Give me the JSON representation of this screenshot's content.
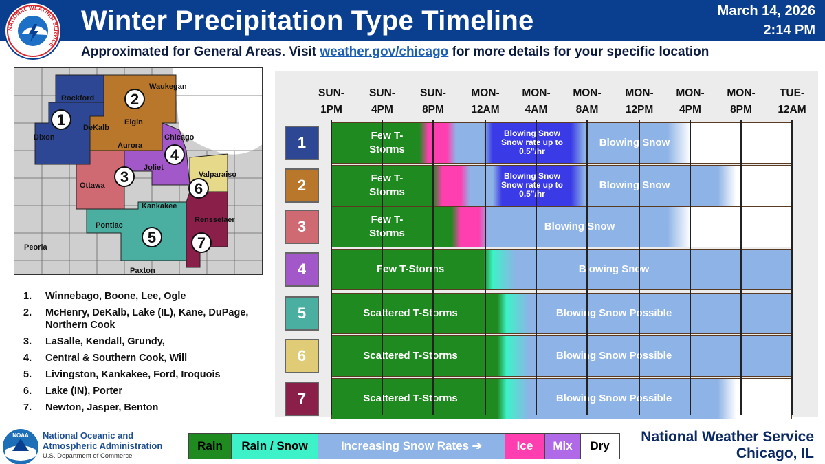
{
  "header": {
    "title": "Winter Precipitation Type Timeline",
    "date": "March 14, 2026",
    "time": "2:14 PM",
    "subtitle_before": "Approximated for General Areas. Visit ",
    "subtitle_link": "weather.gov/chicago",
    "subtitle_after": " for more details for your specific location",
    "logo_text": "NATIONAL WEATHER SERVICE"
  },
  "map": {
    "cities": [
      "Rockford",
      "Waukegan",
      "Dixon",
      "DeKalb",
      "Elgin",
      "Aurora",
      "Chicago",
      "Joliet",
      "Valparaiso",
      "Ottawa",
      "Kankakee",
      "Pontiac",
      "Rensselaer",
      "Peoria",
      "Paxton"
    ],
    "zone_numbers": [
      "1",
      "2",
      "3",
      "4",
      "5",
      "6",
      "7"
    ]
  },
  "areas": [
    {
      "num": "1.",
      "text": "Winnebago, Boone, Lee, Ogle"
    },
    {
      "num": "2.",
      "text": "McHenry, DeKalb, Lake (IL), Kane, DuPage, Northern Cook"
    },
    {
      "num": "3.",
      "text": "LaSalle, Kendall, Grundy,"
    },
    {
      "num": "4.",
      "text": "Central & Southern Cook, Will"
    },
    {
      "num": "5.",
      "text": "Livingston, Kankakee, Ford, Iroquois"
    },
    {
      "num": "6.",
      "text": "Lake (IN), Porter"
    },
    {
      "num": "7.",
      "text": "Newton, Jasper, Benton"
    }
  ],
  "times": [
    {
      "line1": "SUN-",
      "line2": "1PM"
    },
    {
      "line1": "SUN-",
      "line2": "4PM"
    },
    {
      "line1": "SUN-",
      "line2": "8PM"
    },
    {
      "line1": "MON-",
      "line2": "12AM"
    },
    {
      "line1": "MON-",
      "line2": "4AM"
    },
    {
      "line1": "MON-",
      "line2": "8AM"
    },
    {
      "line1": "MON-",
      "line2": "12PM"
    },
    {
      "line1": "MON-",
      "line2": "4PM"
    },
    {
      "line1": "MON-",
      "line2": "8PM"
    },
    {
      "line1": "TUE-",
      "line2": "12AM"
    }
  ],
  "rows": [
    {
      "num": "1",
      "color": "#2e4795",
      "rain_label": "Few T-\nStorms",
      "snow_label": "Blowing Snow",
      "heavy_label": "Blowing Snow\nSnow rate up to\n0.5\"/hr"
    },
    {
      "num": "2",
      "color": "#b8772a",
      "rain_label": "Few T-\nStorms",
      "snow_label": "Blowing Snow",
      "heavy_label": "Blowing Snow\nSnow rate up to\n0.5\"/hr"
    },
    {
      "num": "3",
      "color": "#cf6a73",
      "rain_label": "Few T-\nStorms",
      "snow_label": "Blowing Snow",
      "heavy_label": ""
    },
    {
      "num": "4",
      "color": "#a258c8",
      "rain_label": "Few T-Storms",
      "snow_label": "Blowing Snow",
      "heavy_label": ""
    },
    {
      "num": "5",
      "color": "#4aaea0",
      "rain_label": "Scattered T-Storms",
      "snow_label": "Blowing Snow Possible",
      "heavy_label": ""
    },
    {
      "num": "6",
      "color": "#e0cb77",
      "rain_label": "Scattered T-Storms",
      "snow_label": "Blowing Snow Possible",
      "heavy_label": ""
    },
    {
      "num": "7",
      "color": "#8a1f4a",
      "rain_label": "Scattered T-Storms",
      "snow_label": "Blowing Snow Possible",
      "heavy_label": ""
    }
  ],
  "legend": [
    {
      "label": "Rain",
      "bg": "#1f8a1f",
      "fg": "#000000"
    },
    {
      "label": "Rain / Snow",
      "bg": "#3df2c8",
      "fg": "#000000"
    },
    {
      "label": "Increasing Snow Rates ➔",
      "bg": "#8eb3e6",
      "fg": "#ffffff"
    },
    {
      "label": "Ice",
      "bg": "#ff3fb0",
      "fg": "#ffffff"
    },
    {
      "label": "Mix",
      "bg": "#b06ae8",
      "fg": "#ffffff"
    },
    {
      "label": "Dry",
      "bg": "#ffffff",
      "fg": "#000000"
    }
  ],
  "footer": {
    "noaa_name": "National Oceanic and Atmospheric Administration",
    "noaa_dept": "U.S. Department of Commerce",
    "noaa_logo_text": "NOAA",
    "nws_line1": "National Weather Service",
    "nws_line2": "Chicago, IL"
  }
}
